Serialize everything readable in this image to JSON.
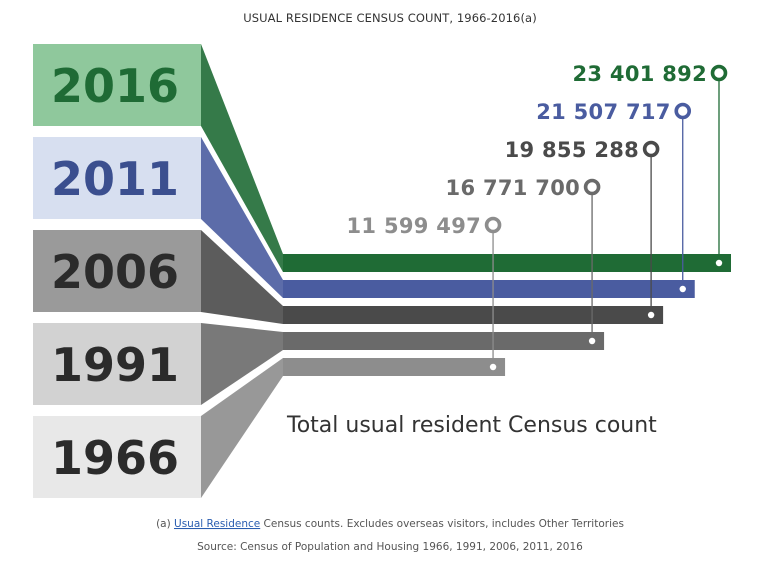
{
  "chart_data": {
    "type": "bar",
    "title": "USUAL RESIDENCE CENSUS COUNT, 1966-2016(a)",
    "categories": [
      "2016",
      "2011",
      "2006",
      "1991",
      "1966"
    ],
    "values": [
      23401892,
      21507717,
      19855288,
      16771700,
      11599497
    ],
    "value_labels": [
      "23 401 892",
      "21 507 717",
      "19 855 288",
      "16 771 700",
      "11 599 497"
    ],
    "colors": [
      "#1f6b35",
      "#4a5ca0",
      "#4a4a4a",
      "#6a6a6a",
      "#8d8d8d"
    ],
    "year_panel_colors": [
      "#8fc89c",
      "#d7dff0",
      "#9a9a9a",
      "#d2d2d2",
      "#e8e8e8"
    ],
    "year_text_colors": [
      "#1f6b35",
      "#3b4f8f",
      "#2b2b2b",
      "#2b2b2b",
      "#2b2b2b"
    ],
    "xlim": [
      0,
      23401892
    ],
    "subtitle": "Total usual resident Census count",
    "footnote": {
      "prefix": "(a) ",
      "link": "Usual Residence",
      "rest": " Census counts. Excludes overseas visitors, includes Other Territories"
    },
    "source": "Source: Census of Population and Housing 1966, 1991, 2006, 2011, 2016",
    "link_color": "#2a5db0"
  }
}
